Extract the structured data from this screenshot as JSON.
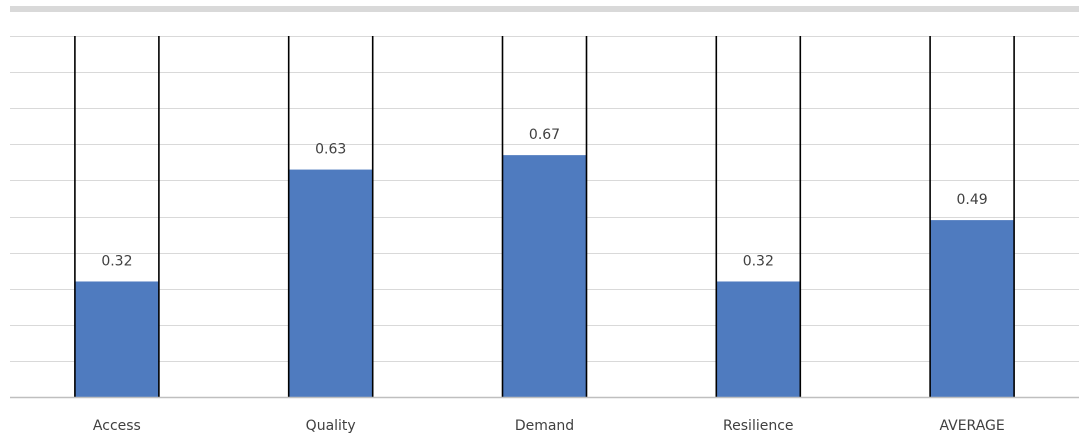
{
  "chart_data": {
    "type": "bar",
    "categories": [
      "Access",
      "Quality",
      "Demand",
      "Resilience",
      "AVERAGE"
    ],
    "values": [
      0.32,
      0.63,
      0.67,
      0.32,
      0.49
    ],
    "data_labels": [
      "0.32",
      "0.63",
      "0.67",
      "0.32",
      "0.49"
    ],
    "title": "",
    "xlabel": "",
    "ylabel": "",
    "ylim": [
      0,
      1
    ],
    "grid": true,
    "bar_color": "#4f7bbf"
  }
}
